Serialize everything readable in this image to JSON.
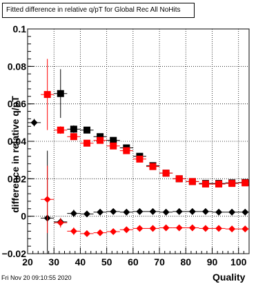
{
  "chart_data": {
    "type": "scatter",
    "title": "Fitted difference in relative q/pT for Global Rec All NoHits",
    "xlabel": "Quality",
    "ylabel": "difference in relative q/pT",
    "xlim": [
      20,
      104
    ],
    "ylim": [
      -0.02,
      0.1
    ],
    "x_ticks": [
      "20",
      "30",
      "40",
      "50",
      "60",
      "70",
      "80",
      "90",
      "100"
    ],
    "y_ticks": [
      "−0.02",
      "0",
      "0.02",
      "0.04",
      "0.06",
      "0.08",
      "0.1"
    ],
    "grid": true,
    "legend": "none",
    "series": [
      {
        "marker": "square",
        "color": "#000000",
        "points": [
          {
            "x": 32.5,
            "y": 0.0655,
            "ey": 0.013
          },
          {
            "x": 37.5,
            "y": 0.0465,
            "ey": 0.002
          },
          {
            "x": 42.5,
            "y": 0.046,
            "ey": 0.0015
          },
          {
            "x": 47.5,
            "y": 0.0425,
            "ey": 0.001
          },
          {
            "x": 52.5,
            "y": 0.0405,
            "ey": 0.001
          },
          {
            "x": 57.5,
            "y": 0.0365,
            "ey": 0.001
          },
          {
            "x": 62.5,
            "y": 0.032,
            "ey": 0.001
          },
          {
            "x": 67.5,
            "y": 0.027,
            "ey": 0.001
          },
          {
            "x": 72.5,
            "y": 0.023,
            "ey": 0.001
          },
          {
            "x": 77.5,
            "y": 0.02,
            "ey": 0.001
          },
          {
            "x": 82.5,
            "y": 0.0185,
            "ey": 0.001
          },
          {
            "x": 87.5,
            "y": 0.0175,
            "ey": 0.001
          },
          {
            "x": 92.5,
            "y": 0.0175,
            "ey": 0.001
          },
          {
            "x": 97.5,
            "y": 0.0178,
            "ey": 0.001
          },
          {
            "x": 102.5,
            "y": 0.018,
            "ey": 0.001
          }
        ]
      },
      {
        "marker": "square",
        "color": "#ff0000",
        "points": [
          {
            "x": 27.5,
            "y": 0.065,
            "ey": 0.019
          },
          {
            "x": 32.5,
            "y": 0.046,
            "ey": 0.002
          },
          {
            "x": 37.5,
            "y": 0.0425,
            "ey": 0.0015
          },
          {
            "x": 42.5,
            "y": 0.039,
            "ey": 0.001
          },
          {
            "x": 47.5,
            "y": 0.0405,
            "ey": 0.001
          },
          {
            "x": 52.5,
            "y": 0.0375,
            "ey": 0.001
          },
          {
            "x": 57.5,
            "y": 0.035,
            "ey": 0.001
          },
          {
            "x": 62.5,
            "y": 0.0305,
            "ey": 0.001
          },
          {
            "x": 67.5,
            "y": 0.0265,
            "ey": 0.001
          },
          {
            "x": 72.5,
            "y": 0.023,
            "ey": 0.001
          },
          {
            "x": 77.5,
            "y": 0.02,
            "ey": 0.001
          },
          {
            "x": 82.5,
            "y": 0.0185,
            "ey": 0.001
          },
          {
            "x": 87.5,
            "y": 0.0172,
            "ey": 0.001
          },
          {
            "x": 92.5,
            "y": 0.0172,
            "ey": 0.001
          },
          {
            "x": 97.5,
            "y": 0.0175,
            "ey": 0.001
          },
          {
            "x": 102.5,
            "y": 0.0178,
            "ey": 0.001
          }
        ]
      },
      {
        "marker": "diamond",
        "color": "#000000",
        "points": [
          {
            "x": 22.5,
            "y": 0.05,
            "ey": 0.002
          },
          {
            "x": 27.5,
            "y": -0.001,
            "ey": 0.036
          },
          {
            "x": 32.5,
            "y": -0.003,
            "ey": 0.002
          },
          {
            "x": 37.5,
            "y": 0.0015,
            "ey": 0.002
          },
          {
            "x": 42.5,
            "y": 0.0012,
            "ey": 0.001
          },
          {
            "x": 47.5,
            "y": 0.0022,
            "ey": 0.001
          },
          {
            "x": 52.5,
            "y": 0.0025,
            "ey": 0.0008
          },
          {
            "x": 57.5,
            "y": 0.0022,
            "ey": 0.0008
          },
          {
            "x": 62.5,
            "y": 0.0025,
            "ey": 0.0008
          },
          {
            "x": 67.5,
            "y": 0.0025,
            "ey": 0.0008
          },
          {
            "x": 72.5,
            "y": 0.0022,
            "ey": 0.0008
          },
          {
            "x": 77.5,
            "y": 0.0025,
            "ey": 0.0008
          },
          {
            "x": 82.5,
            "y": 0.0025,
            "ey": 0.0008
          },
          {
            "x": 87.5,
            "y": 0.0025,
            "ey": 0.0008
          },
          {
            "x": 92.5,
            "y": 0.0022,
            "ey": 0.0008
          },
          {
            "x": 97.5,
            "y": 0.0022,
            "ey": 0.0008
          },
          {
            "x": 102.5,
            "y": 0.0022,
            "ey": 0.0008
          }
        ]
      },
      {
        "marker": "diamond",
        "color": "#ff0000",
        "points": [
          {
            "x": 27.5,
            "y": 0.009,
            "ey": 0.018
          },
          {
            "x": 32.5,
            "y": -0.0035,
            "ey": 0.0025
          },
          {
            "x": 37.5,
            "y": -0.008,
            "ey": 0.002
          },
          {
            "x": 42.5,
            "y": -0.0093,
            "ey": 0.001
          },
          {
            "x": 47.5,
            "y": -0.0088,
            "ey": 0.001
          },
          {
            "x": 52.5,
            "y": -0.0082,
            "ey": 0.001
          },
          {
            "x": 57.5,
            "y": -0.0072,
            "ey": 0.001
          },
          {
            "x": 62.5,
            "y": -0.0065,
            "ey": 0.001
          },
          {
            "x": 67.5,
            "y": -0.0065,
            "ey": 0.001
          },
          {
            "x": 72.5,
            "y": -0.0062,
            "ey": 0.001
          },
          {
            "x": 77.5,
            "y": -0.0062,
            "ey": 0.001
          },
          {
            "x": 82.5,
            "y": -0.0062,
            "ey": 0.001
          },
          {
            "x": 87.5,
            "y": -0.0065,
            "ey": 0.001
          },
          {
            "x": 92.5,
            "y": -0.0065,
            "ey": 0.001
          },
          {
            "x": 97.5,
            "y": -0.0068,
            "ey": 0.001
          },
          {
            "x": 102.5,
            "y": -0.0068,
            "ey": 0.001
          }
        ]
      }
    ]
  },
  "footer": "Fri Nov 20 09:10:55 2020"
}
